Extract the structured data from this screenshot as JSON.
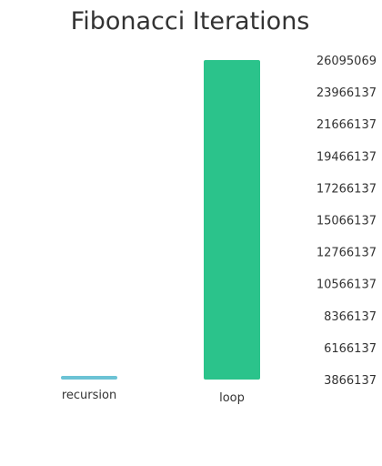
{
  "chart_data": {
    "type": "bar",
    "title": "Fibonacci Iterations",
    "xlabel": "",
    "ylabel": "",
    "categories": [
      "recursion",
      "loop"
    ],
    "values": [
      3866137,
      26095069
    ],
    "ylim": [
      3866137,
      26095069
    ],
    "y_ticks": [
      "3866137",
      "6166137",
      "8366137",
      "10566137",
      "12766137",
      "15066137",
      "17266137",
      "19466137",
      "21666137",
      "23966137",
      "26095069"
    ],
    "y_axis_position": "right",
    "grid": false,
    "legend": "none",
    "colors": {
      "recursion": "#6cc3d5",
      "loop": "#2bc38b",
      "text": "#333333",
      "background": "#ffffff"
    }
  }
}
